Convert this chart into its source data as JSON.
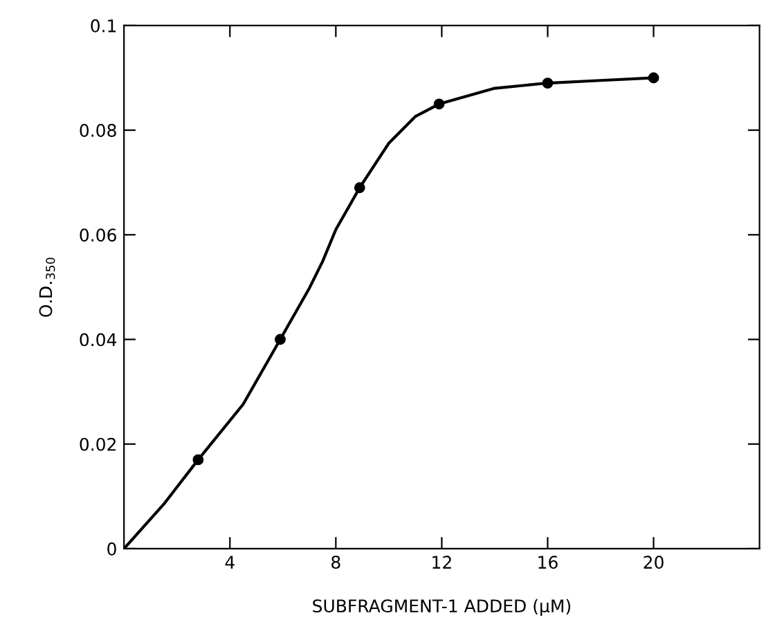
{
  "chart_data": {
    "type": "line",
    "xlabel": "SUBFRAGMENT-1 ADDED (μM)",
    "ylabel": "O.D.$_{350}$",
    "series": [
      {
        "color": "#000000",
        "x": [
          0,
          1.5,
          2.8,
          4.5,
          5.9,
          7,
          7.5,
          8,
          8.9,
          10,
          11,
          11.9,
          14,
          16,
          18,
          20
        ],
        "values": [
          0,
          0.0085,
          0.017,
          0.0276,
          0.04,
          0.0498,
          0.0549,
          0.061,
          0.069,
          0.0775,
          0.0826,
          0.085,
          0.088,
          0.089,
          0.0895,
          0.09
        ],
        "marker": "none"
      },
      {
        "type": "scatter",
        "color": "#000000",
        "x": [
          2.8,
          5.9,
          8.9,
          11.9,
          16,
          20
        ],
        "values": [
          0.017,
          0.04,
          0.069,
          0.085,
          0.089,
          0.09
        ],
        "marker": "circle"
      }
    ],
    "xlim": [
      0,
      24
    ],
    "ylim": [
      0,
      0.1
    ],
    "xticks": [
      4,
      8,
      12,
      16,
      20
    ],
    "yticks": [
      0,
      0.02,
      0.04,
      0.06,
      0.08,
      0.1
    ],
    "grid": false,
    "legend": false
  }
}
